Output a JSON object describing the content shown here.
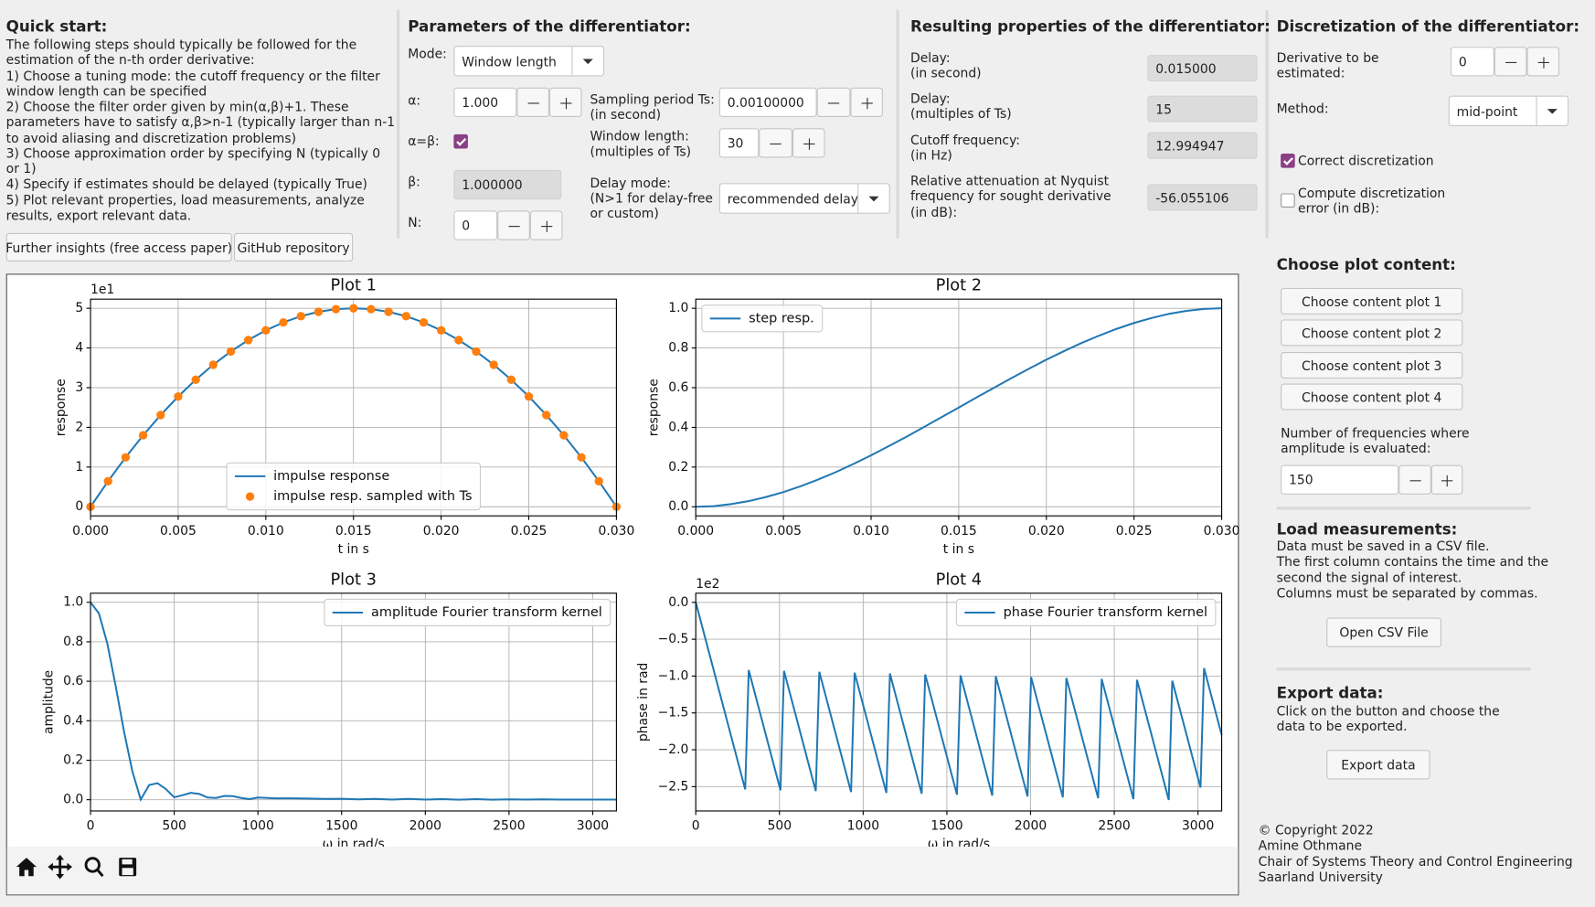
{
  "quick_start": {
    "title": "Quick start:",
    "text": [
      "The following steps should typically be followed for the",
      "estimation of the n-th order derivative:",
      "1) Choose a tuning mode: the cutoff frequency or the filter",
      "window length can be specified",
      "2) Choose the filter order given by min(α,β)+1. These",
      "parameters have to satisfy α,β>n-1 (typically larger than n-1",
      "to avoid aliasing and discretization problems)",
      "3) Choose approximation order by specifying N (typically 0",
      "or 1)",
      "4) Specify if estimates should be delayed (typically True)",
      "5) Plot relevant properties, load measurements, analyze",
      "results, export relevant data."
    ],
    "links": [
      "Further insights (free access paper)",
      "GitHub repository"
    ]
  },
  "parameters": {
    "title": "Parameters of the differentiator:",
    "mode": {
      "label": "Mode:",
      "value": "Window length"
    },
    "alpha": {
      "label": "α:",
      "value": "1.000"
    },
    "alpha_eq_beta": {
      "label": "α=β:",
      "checked": true
    },
    "beta": {
      "label": "β:",
      "value": "1.000000"
    },
    "n": {
      "label": "N:",
      "value": "0"
    },
    "ts": {
      "label": [
        "Sampling period Ts:",
        "(in second)"
      ],
      "value": "0.00100000"
    },
    "window_length": {
      "label": [
        "Window length:",
        "(multiples of Ts)"
      ],
      "value": "30"
    },
    "delay_mode": {
      "label": [
        "Delay mode:",
        "(N>1 for delay-free",
        "or custom)"
      ],
      "value": "recommended delay"
    }
  },
  "results": {
    "title": "Resulting properties of the differentiator:",
    "rows": [
      {
        "label": [
          "Delay:",
          "(in second)"
        ],
        "value": "0.015000"
      },
      {
        "label": [
          "Delay:",
          "(multiples of Ts)"
        ],
        "value": "15"
      },
      {
        "label": [
          "Cutoff frequency:",
          "(in Hz)"
        ],
        "value": "12.994947"
      },
      {
        "label": [
          "Relative attenuation at Nyquist",
          "frequency for sought derivative",
          "(in dB):"
        ],
        "value": "-56.055106"
      }
    ]
  },
  "discretization": {
    "title": "Discretization of the differentiator:",
    "derivative": {
      "label": [
        "Derivative to be",
        "estimated:"
      ],
      "value": "0"
    },
    "method": {
      "label": "Method:",
      "value": "mid-point"
    },
    "correct": {
      "label": "Correct discretization",
      "checked": true
    },
    "compute_error": {
      "label": [
        "Compute discretization",
        "error (in dB):"
      ],
      "checked": false
    }
  },
  "plot_content": {
    "title": "Choose plot content:",
    "buttons": [
      "Choose content plot 1",
      "Choose content plot 2",
      "Choose content plot 3",
      "Choose content plot 4"
    ],
    "frequencies": {
      "label": [
        "Number of frequencies where",
        "amplitude is evaluated:"
      ],
      "value": "150"
    }
  },
  "load": {
    "title": "Load measurements:",
    "text": [
      "Data must be saved in a CSV file.",
      "The first column contains the time and the",
      "second the signal of interest.",
      "Columns must be separated by commas."
    ],
    "button": "Open CSV File"
  },
  "export": {
    "title": "Export data:",
    "text": [
      "Click on the button and choose the",
      "data to be exported."
    ],
    "button": "Export data"
  },
  "copyright": [
    "© Copyright 2022",
    "Amine Othmane",
    "Chair of Systems Theory and Control Engineering",
    "Saarland University"
  ],
  "chart_data": [
    {
      "type": "line",
      "title": "Plot 1",
      "xlabel": "t in s",
      "ylabel": "response",
      "y_offset_label": "1e1",
      "grid": true,
      "legend": "lower center",
      "xlim": [
        0,
        0.03
      ],
      "ylim": [
        -0.23,
        5.23
      ],
      "xticks": [
        {
          "value": 0,
          "label": "0.000"
        },
        {
          "value": 0.005,
          "label": "0.005"
        },
        {
          "value": 0.01,
          "label": "0.010"
        },
        {
          "value": 0.015,
          "label": "0.015"
        },
        {
          "value": 0.02,
          "label": "0.020"
        },
        {
          "value": 0.025,
          "label": "0.025"
        },
        {
          "value": 0.03,
          "label": "0.030"
        }
      ],
      "yticks": [
        0,
        1,
        2,
        3,
        4,
        5
      ],
      "x": [
        0,
        0.001,
        0.002,
        0.003,
        0.004,
        0.005,
        0.006,
        0.007,
        0.008,
        0.009,
        0.01,
        0.011,
        0.012,
        0.013,
        0.014,
        0.015,
        0.016,
        0.017,
        0.018,
        0.019,
        0.02,
        0.021,
        0.022,
        0.023,
        0.024,
        0.025,
        0.026,
        0.027,
        0.028,
        0.029,
        0.03
      ],
      "series": [
        {
          "name": "impulse response",
          "color": "#1f77b4",
          "style": "line",
          "values": [
            0,
            0.644,
            1.244,
            1.8,
            2.311,
            2.778,
            3.2,
            3.578,
            3.911,
            4.2,
            4.444,
            4.644,
            4.8,
            4.911,
            4.978,
            5,
            4.978,
            4.911,
            4.8,
            4.644,
            4.444,
            4.2,
            3.911,
            3.578,
            3.2,
            2.778,
            2.311,
            1.8,
            1.244,
            0.644,
            0
          ]
        },
        {
          "name": "impulse resp. sampled with Ts",
          "color": "#ff7f0e",
          "style": "markers",
          "values": [
            0,
            0.644,
            1.244,
            1.8,
            2.311,
            2.778,
            3.2,
            3.578,
            3.911,
            4.2,
            4.444,
            4.644,
            4.8,
            4.911,
            4.978,
            5,
            4.978,
            4.911,
            4.8,
            4.644,
            4.444,
            4.2,
            3.911,
            3.578,
            3.2,
            2.778,
            2.311,
            1.8,
            1.244,
            0.644,
            0
          ]
        }
      ]
    },
    {
      "type": "line",
      "title": "Plot 2",
      "xlabel": "t in s",
      "ylabel": "response",
      "grid": true,
      "legend": "upper left",
      "xlim": [
        0,
        0.03
      ],
      "ylim": [
        -0.046,
        1.046
      ],
      "xticks": [
        {
          "value": 0,
          "label": "0.000"
        },
        {
          "value": 0.005,
          "label": "0.005"
        },
        {
          "value": 0.01,
          "label": "0.010"
        },
        {
          "value": 0.015,
          "label": "0.015"
        },
        {
          "value": 0.02,
          "label": "0.020"
        },
        {
          "value": 0.025,
          "label": "0.025"
        },
        {
          "value": 0.03,
          "label": "0.030"
        }
      ],
      "yticks": [
        {
          "value": 0,
          "label": "0.0"
        },
        {
          "value": 0.2,
          "label": "0.2"
        },
        {
          "value": 0.4,
          "label": "0.4"
        },
        {
          "value": 0.6,
          "label": "0.6"
        },
        {
          "value": 0.8,
          "label": "0.8"
        },
        {
          "value": 1,
          "label": "1.0"
        }
      ],
      "x": [
        0,
        0.001,
        0.002,
        0.003,
        0.004,
        0.005,
        0.006,
        0.007,
        0.008,
        0.009,
        0.01,
        0.011,
        0.012,
        0.013,
        0.014,
        0.015,
        0.016,
        0.017,
        0.018,
        0.019,
        0.02,
        0.021,
        0.022,
        0.023,
        0.024,
        0.025,
        0.026,
        0.027,
        0.028,
        0.029,
        0.03
      ],
      "series": [
        {
          "name": "step resp.",
          "color": "#1f77b4",
          "style": "line",
          "values": [
            0,
            0.003,
            0.013,
            0.028,
            0.049,
            0.074,
            0.104,
            0.138,
            0.175,
            0.216,
            0.259,
            0.305,
            0.352,
            0.401,
            0.45,
            0.5,
            0.55,
            0.599,
            0.648,
            0.695,
            0.741,
            0.784,
            0.825,
            0.862,
            0.896,
            0.926,
            0.951,
            0.972,
            0.987,
            0.997,
            1
          ]
        }
      ]
    },
    {
      "type": "line",
      "title": "Plot 3",
      "xlabel": "ω in rad/s",
      "ylabel": "amplitude",
      "grid": true,
      "legend": "upper right",
      "xlim": [
        0,
        3141.59
      ],
      "ylim": [
        -0.057,
        1.046
      ],
      "xticks": [
        0,
        500,
        1000,
        1500,
        2000,
        2500,
        3000
      ],
      "yticks": [
        {
          "value": 0,
          "label": "0.0"
        },
        {
          "value": 0.2,
          "label": "0.2"
        },
        {
          "value": 0.4,
          "label": "0.4"
        },
        {
          "value": 0.6,
          "label": "0.6"
        },
        {
          "value": 0.8,
          "label": "0.8"
        },
        {
          "value": 1,
          "label": "1.0"
        }
      ],
      "x": [
        0,
        50,
        100,
        150,
        200,
        250,
        300,
        350,
        400,
        450,
        500,
        550,
        600,
        650,
        700,
        750,
        800,
        850,
        900,
        950,
        1000,
        1100,
        1200,
        1300,
        1400,
        1500,
        1600,
        1700,
        1800,
        1900,
        2000,
        2100,
        2200,
        2300,
        2400,
        2500,
        2600,
        2700,
        2800,
        2900,
        3000,
        3100,
        3141.59
      ],
      "series": [
        {
          "name": "amplitude Fourier transform kernel",
          "color": "#1f77b4",
          "style": "line",
          "values": [
            1,
            0.944,
            0.792,
            0.577,
            0.346,
            0.143,
            0.001,
            0.074,
            0.084,
            0.054,
            0.012,
            0.023,
            0.035,
            0.029,
            0.011,
            0.009,
            0.019,
            0.018,
            0.009,
            0.003,
            0.011,
            0.007,
            0.007,
            0.006,
            0.004,
            0.005,
            0.002,
            0.004,
            0.001,
            0.004,
            0.001,
            0.003,
            0,
            0.003,
            0,
            0.002,
            0.001,
            0.002,
            0.001,
            0.001,
            0.001,
            0.001,
            0.001
          ]
        }
      ]
    },
    {
      "type": "line",
      "title": "Plot 4",
      "xlabel": "ω in rad/s",
      "ylabel": "phase in rad",
      "y_offset_label": "1e2",
      "grid": true,
      "legend": "upper right",
      "xlim": [
        0,
        3141.59
      ],
      "ylim": [
        -2.83,
        0.124
      ],
      "xticks": [
        0,
        500,
        1000,
        1500,
        2000,
        2500,
        3000
      ],
      "yticks": [
        {
          "value": 0,
          "label": "0.0"
        },
        {
          "value": -0.5,
          "label": "−0.5"
        },
        {
          "value": -1,
          "label": "−1.0"
        },
        {
          "value": -1.5,
          "label": "−1.5"
        },
        {
          "value": -2,
          "label": "−2.0"
        },
        {
          "value": -2.5,
          "label": "−2.5"
        }
      ],
      "x": [
        0,
        295.2,
        316.3,
        506,
        527.1,
        716.9,
        738,
        927.7,
        948.8,
        1138.6,
        1159.7,
        1349.4,
        1370.5,
        1560.3,
        1581.4,
        1771.1,
        1792.2,
        1982,
        2003.1,
        2192.8,
        2213.9,
        2403.7,
        2424.8,
        2614.5,
        2635.6,
        2825.4,
        2846.5,
        3015.1,
        3036.2,
        3141.59
      ],
      "series": [
        {
          "name": "phase Fourier transform kernel",
          "color": "#1f77b4",
          "style": "line",
          "values": [
            0,
            -2.537,
            -0.918,
            -2.549,
            -0.93,
            -2.561,
            -0.942,
            -2.573,
            -0.954,
            -2.585,
            -0.966,
            -2.596,
            -0.978,
            -2.609,
            -0.99,
            -2.621,
            -1.002,
            -2.633,
            -1.014,
            -2.645,
            -1.026,
            -2.657,
            -1.039,
            -2.669,
            -1.051,
            -2.681,
            -1.063,
            -2.512,
            -0.893,
            -1.799
          ]
        }
      ]
    }
  ]
}
